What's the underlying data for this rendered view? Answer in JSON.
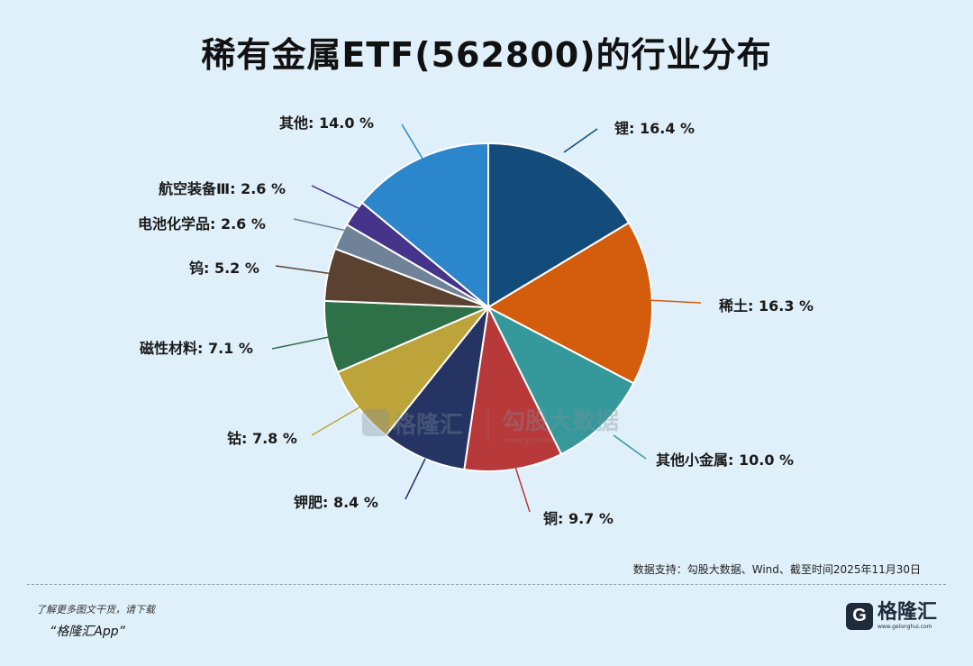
{
  "title": "稀有金属ETF(562800)的行业分布",
  "chart_data": {
    "type": "pie",
    "title": "稀有金属ETF(562800)的行业分布",
    "slices": [
      {
        "label": "锂",
        "value": 16.4,
        "color": "#134b7a"
      },
      {
        "label": "稀土",
        "value": 16.3,
        "color": "#d35c0d"
      },
      {
        "label": "其他小金属",
        "value": 10.0,
        "color": "#35999b"
      },
      {
        "label": "铜",
        "value": 9.7,
        "color": "#b8393a"
      },
      {
        "label": "钾肥",
        "value": 8.4,
        "color": "#263463"
      },
      {
        "label": "钴",
        "value": 7.8,
        "color": "#bca43a"
      },
      {
        "label": "磁性材料",
        "value": 7.1,
        "color": "#2e7148"
      },
      {
        "label": "钨",
        "value": 5.2,
        "color": "#5b4130"
      },
      {
        "label": "电池化学品",
        "value": 2.6,
        "color": "#6f8298"
      },
      {
        "label": "航空装备Ⅲ",
        "value": 2.6,
        "color": "#46338a"
      },
      {
        "label": "其他",
        "value": 14.0,
        "color": "#2c86cc"
      }
    ],
    "value_format": "{v} %"
  },
  "watermark": {
    "name": "格隆汇",
    "partner": "勾股大数据",
    "url": "www.gogudata.com"
  },
  "source": "数据支持：勾股大数据、Wind、截至时间2025年11月30日",
  "footer": {
    "note": "了解更多图文干货，请下载",
    "app": "“格隆汇App”",
    "logo_letter": "G",
    "logo_text": "格隆汇",
    "logo_url": "www.gelonghui.com"
  }
}
